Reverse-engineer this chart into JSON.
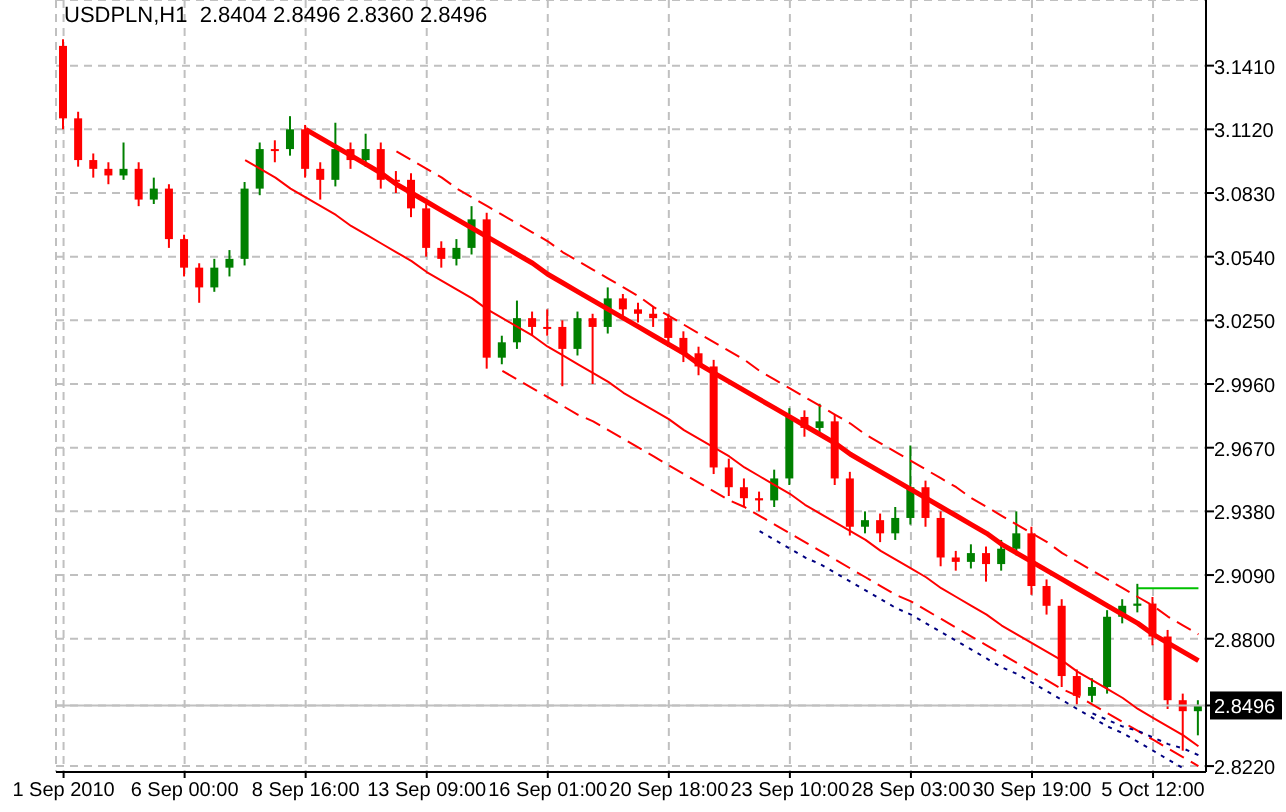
{
  "chart_data": {
    "type": "candlestick",
    "title": "USDPLN,H1  2.8404 2.8496 2.8360 2.8496",
    "categories": [
      "1 Sep 2010",
      null,
      null,
      null,
      null,
      null,
      null,
      null,
      "6 Sep 00:00",
      null,
      null,
      null,
      null,
      null,
      null,
      null,
      "8 Sep 16:00",
      null,
      null,
      null,
      null,
      null,
      null,
      null,
      "13 Sep 09:00",
      null,
      null,
      null,
      null,
      null,
      null,
      null,
      "16 Sep 01:00",
      null,
      null,
      null,
      null,
      null,
      null,
      null,
      "20 Sep 18:00",
      null,
      null,
      null,
      null,
      null,
      null,
      null,
      "23 Sep 10:00",
      null,
      null,
      null,
      null,
      null,
      null,
      null,
      "28 Sep 03:00",
      null,
      null,
      null,
      null,
      null,
      null,
      null,
      "30 Sep 19:00",
      null,
      null,
      null,
      null,
      null,
      null,
      null,
      "5 Oct 12:00",
      null,
      null,
      null
    ],
    "ylim": [
      2.8193,
      3.1709
    ],
    "yticks": [
      {
        "value": 3.141,
        "label": "3.1410"
      },
      {
        "value": 3.112,
        "label": "3.1120"
      },
      {
        "value": 3.083,
        "label": "3.0830"
      },
      {
        "value": 3.054,
        "label": "3.0540"
      },
      {
        "value": 3.025,
        "label": "3.0250"
      },
      {
        "value": 2.996,
        "label": "2.9960"
      },
      {
        "value": 2.967,
        "label": "2.9670"
      },
      {
        "value": 2.938,
        "label": "2.9380"
      },
      {
        "value": 2.909,
        "label": "2.9090"
      },
      {
        "value": 2.88,
        "label": "2.8800"
      },
      {
        "value": 2.8496,
        "label": "2.8496"
      },
      {
        "value": 2.822,
        "label": "2.8220"
      }
    ],
    "grid": true,
    "legend": false,
    "ref_lines": [
      {
        "axis": "y",
        "value": 2.8496,
        "color": "#c0c0c0",
        "line_style": "solid"
      }
    ],
    "series": [
      {
        "ohlc": [
          [
            3.15,
            3.153,
            3.112,
            3.117
          ],
          [
            3.117,
            3.12,
            3.095,
            3.098
          ],
          [
            3.098,
            3.101,
            3.09,
            3.094
          ],
          [
            3.094,
            3.097,
            3.087,
            3.091
          ],
          [
            3.091,
            3.106,
            3.089,
            3.094
          ],
          [
            3.094,
            3.097,
            3.077,
            3.08
          ],
          [
            3.08,
            3.09,
            3.078,
            3.085
          ],
          [
            3.085,
            3.087,
            3.058,
            3.062
          ],
          [
            3.062,
            3.064,
            3.045,
            3.049
          ],
          [
            3.049,
            3.051,
            3.033,
            3.04
          ],
          [
            3.04,
            3.053,
            3.038,
            3.049
          ],
          [
            3.049,
            3.057,
            3.045,
            3.053
          ],
          [
            3.053,
            3.088,
            3.05,
            3.085
          ],
          [
            3.085,
            3.106,
            3.082,
            3.103
          ],
          [
            3.103,
            3.107,
            3.097,
            3.103
          ],
          [
            3.103,
            3.118,
            3.1,
            3.112
          ],
          [
            3.112,
            3.114,
            3.09,
            3.094
          ],
          [
            3.094,
            3.097,
            3.08,
            3.089
          ],
          [
            3.089,
            3.115,
            3.086,
            3.103
          ],
          [
            3.103,
            3.106,
            3.094,
            3.098
          ],
          [
            3.098,
            3.11,
            3.095,
            3.103
          ],
          [
            3.103,
            3.106,
            3.085,
            3.089
          ],
          [
            3.089,
            3.093,
            3.083,
            3.089
          ],
          [
            3.089,
            3.092,
            3.072,
            3.076
          ],
          [
            3.076,
            3.078,
            3.054,
            3.058
          ],
          [
            3.058,
            3.061,
            3.049,
            3.053
          ],
          [
            3.053,
            3.062,
            3.05,
            3.058
          ],
          [
            3.058,
            3.077,
            3.055,
            3.071
          ],
          [
            3.071,
            3.074,
            3.003,
            3.008
          ],
          [
            3.008,
            3.018,
            3.005,
            3.015
          ],
          [
            3.015,
            3.034,
            3.012,
            3.026
          ],
          [
            3.026,
            3.029,
            3.018,
            3.022
          ],
          [
            3.022,
            3.03,
            3.018,
            3.022
          ],
          [
            3.022,
            3.025,
            2.995,
            3.012
          ],
          [
            3.012,
            3.029,
            3.009,
            3.026
          ],
          [
            3.026,
            3.028,
            2.996,
            3.022
          ],
          [
            3.022,
            3.04,
            3.019,
            3.035
          ],
          [
            3.035,
            3.037,
            3.027,
            3.03
          ],
          [
            3.03,
            3.033,
            3.024,
            3.028
          ],
          [
            3.028,
            3.031,
            3.022,
            3.026
          ],
          [
            3.026,
            3.028,
            3.013,
            3.017
          ],
          [
            3.017,
            3.02,
            3.006,
            3.01
          ],
          [
            3.01,
            3.013,
            3.0,
            3.004
          ],
          [
            3.004,
            3.007,
            2.955,
            2.958
          ],
          [
            2.958,
            2.962,
            2.945,
            2.949
          ],
          [
            2.949,
            2.953,
            2.94,
            2.944
          ],
          [
            2.944,
            2.947,
            2.938,
            2.943
          ],
          [
            2.943,
            2.957,
            2.94,
            2.953
          ],
          [
            2.953,
            2.985,
            2.95,
            2.981
          ],
          [
            2.981,
            2.984,
            2.972,
            2.976
          ],
          [
            2.976,
            2.987,
            2.973,
            2.979
          ],
          [
            2.979,
            2.982,
            2.95,
            2.953
          ],
          [
            2.953,
            2.956,
            2.927,
            2.931
          ],
          [
            2.931,
            2.938,
            2.928,
            2.934
          ],
          [
            2.934,
            2.937,
            2.924,
            2.928
          ],
          [
            2.928,
            2.94,
            2.925,
            2.935
          ],
          [
            2.935,
            2.968,
            2.932,
            2.949
          ],
          [
            2.949,
            2.952,
            2.931,
            2.935
          ],
          [
            2.935,
            2.938,
            2.913,
            2.917
          ],
          [
            2.917,
            2.92,
            2.911,
            2.915
          ],
          [
            2.915,
            2.923,
            2.912,
            2.919
          ],
          [
            2.919,
            2.922,
            2.906,
            2.914
          ],
          [
            2.914,
            2.925,
            2.911,
            2.921
          ],
          [
            2.921,
            2.938,
            2.918,
            2.928
          ],
          [
            2.928,
            2.931,
            2.9,
            2.904
          ],
          [
            2.904,
            2.907,
            2.891,
            2.895
          ],
          [
            2.895,
            2.898,
            2.858,
            2.863
          ],
          [
            2.863,
            2.866,
            2.85,
            2.854
          ],
          [
            2.854,
            2.862,
            2.851,
            2.858
          ],
          [
            2.858,
            2.893,
            2.855,
            2.89
          ],
          [
            2.89,
            2.898,
            2.887,
            2.895
          ],
          [
            2.895,
            2.905,
            2.892,
            2.896
          ],
          [
            2.896,
            2.899,
            2.877,
            2.881
          ],
          [
            2.881,
            2.884,
            2.848,
            2.852
          ],
          [
            2.852,
            2.855,
            2.829,
            2.847
          ],
          [
            2.847,
            2.852,
            2.836,
            2.8496
          ]
        ],
        "colors": [
          "#ff0000",
          "#ff0000",
          "#ff0000",
          "#ff0000",
          "#008000",
          "#ff0000",
          "#008000",
          "#ff0000",
          "#ff0000",
          "#ff0000",
          "#008000",
          "#008000",
          "#008000",
          "#008000",
          "#ff0000",
          "#008000",
          "#ff0000",
          "#ff0000",
          "#008000",
          "#ff0000",
          "#008000",
          "#ff0000",
          "#ff0000",
          "#ff0000",
          "#ff0000",
          "#ff0000",
          "#008000",
          "#008000",
          "#ff0000",
          "#008000",
          "#008000",
          "#ff0000",
          "#ff0000",
          "#ff0000",
          "#008000",
          "#ff0000",
          "#008000",
          "#ff0000",
          "#ff0000",
          "#ff0000",
          "#ff0000",
          "#ff0000",
          "#ff0000",
          "#ff0000",
          "#ff0000",
          "#ff0000",
          "#ff0000",
          "#008000",
          "#008000",
          "#ff0000",
          "#008000",
          "#ff0000",
          "#ff0000",
          "#008000",
          "#ff0000",
          "#008000",
          "#008000",
          "#ff0000",
          "#ff0000",
          "#ff0000",
          "#008000",
          "#ff0000",
          "#008000",
          "#008000",
          "#ff0000",
          "#ff0000",
          "#ff0000",
          "#ff0000",
          "#008000",
          "#008000",
          "#008000",
          "#008000",
          "#ff0000",
          "#ff0000",
          "#ff0000",
          "#008000"
        ]
      },
      {
        "type": "line",
        "color": "#ff0000",
        "line_style": "solid",
        "values": [
          null,
          null,
          null,
          null,
          null,
          null,
          null,
          null,
          null,
          null,
          null,
          null,
          null,
          null,
          null,
          null,
          3.112,
          3.108,
          3.104,
          3.1,
          3.096,
          3.092,
          3.087,
          3.083,
          3.079,
          3.075,
          3.071,
          3.067,
          3.063,
          3.059,
          3.055,
          3.051,
          3.046,
          3.042,
          3.038,
          3.034,
          3.03,
          3.026,
          3.022,
          3.018,
          3.014,
          3.01,
          3.005,
          3.001,
          2.997,
          2.993,
          2.989,
          2.985,
          2.981,
          2.977,
          2.973,
          2.969,
          2.964,
          2.96,
          2.956,
          2.952,
          2.948,
          2.944,
          2.94,
          2.936,
          2.932,
          2.928,
          2.923,
          2.919,
          2.915,
          2.911,
          2.907,
          2.903,
          2.899,
          2.895,
          2.891,
          2.887,
          2.882,
          2.878,
          2.874,
          2.87
        ]
      },
      {
        "type": "line",
        "color": "#ff0000",
        "line_style": "solid",
        "values": [
          null,
          null,
          null,
          null,
          null,
          null,
          null,
          null,
          null,
          null,
          null,
          null,
          3.098,
          3.094,
          3.09,
          3.085,
          3.081,
          3.077,
          3.073,
          3.068,
          3.064,
          3.06,
          3.056,
          3.052,
          3.047,
          3.043,
          3.039,
          3.035,
          3.03,
          3.026,
          3.022,
          3.018,
          3.013,
          3.009,
          3.005,
          3.001,
          2.997,
          2.992,
          2.988,
          2.984,
          2.98,
          2.975,
          2.971,
          2.967,
          2.963,
          2.958,
          2.954,
          2.95,
          2.946,
          2.941,
          2.937,
          2.933,
          2.929,
          2.925,
          2.92,
          2.916,
          2.912,
          2.908,
          2.903,
          2.899,
          2.895,
          2.891,
          2.886,
          2.882,
          2.878,
          2.874,
          2.87,
          2.865,
          2.861,
          2.857,
          2.853,
          2.848,
          2.844,
          2.84,
          2.836,
          2.831
        ]
      },
      {
        "type": "line",
        "color": "#ff0000",
        "line_style": "dashed",
        "values": [
          null,
          null,
          null,
          null,
          null,
          null,
          null,
          null,
          null,
          null,
          null,
          null,
          null,
          null,
          null,
          null,
          null,
          null,
          null,
          null,
          null,
          null,
          3.102,
          3.098,
          3.094,
          3.09,
          3.085,
          3.081,
          3.077,
          3.073,
          3.069,
          3.065,
          3.061,
          3.056,
          3.052,
          3.048,
          3.044,
          3.04,
          3.036,
          3.031,
          3.027,
          3.023,
          3.019,
          3.015,
          3.011,
          3.007,
          3.002,
          2.998,
          2.994,
          2.99,
          2.986,
          2.982,
          2.978,
          2.973,
          2.969,
          2.965,
          2.961,
          2.957,
          2.953,
          2.949,
          2.944,
          2.94,
          2.936,
          2.932,
          2.928,
          2.924,
          2.919,
          2.915,
          2.911,
          2.907,
          2.903,
          2.899,
          2.895,
          2.89,
          2.886,
          2.882
        ]
      },
      {
        "type": "line",
        "color": "#ff0000",
        "line_style": "dashed",
        "values": [
          null,
          null,
          null,
          null,
          null,
          null,
          null,
          null,
          null,
          null,
          null,
          null,
          null,
          null,
          null,
          null,
          null,
          null,
          null,
          null,
          null,
          null,
          null,
          null,
          null,
          null,
          null,
          null,
          null,
          3.002,
          2.998,
          2.994,
          2.99,
          2.986,
          2.982,
          2.979,
          2.975,
          2.971,
          2.967,
          2.963,
          2.959,
          2.955,
          2.951,
          2.947,
          2.943,
          2.94,
          2.936,
          2.932,
          2.928,
          2.924,
          2.92,
          2.916,
          2.912,
          2.908,
          2.904,
          2.9,
          2.897,
          2.893,
          2.889,
          2.885,
          2.881,
          2.877,
          2.873,
          2.869,
          2.865,
          2.861,
          2.857,
          2.854,
          2.85,
          2.846,
          2.842,
          2.838,
          2.834,
          2.83,
          2.826,
          2.822
        ]
      },
      {
        "type": "line",
        "color": "#000080",
        "line_style": "dotted",
        "values": [
          null,
          null,
          null,
          null,
          null,
          null,
          null,
          null,
          null,
          null,
          null,
          null,
          null,
          null,
          null,
          null,
          null,
          null,
          null,
          null,
          null,
          null,
          null,
          null,
          null,
          null,
          null,
          null,
          null,
          null,
          null,
          null,
          null,
          null,
          null,
          null,
          null,
          null,
          null,
          null,
          null,
          null,
          null,
          null,
          null,
          null,
          2.929,
          2.925,
          2.921,
          2.917,
          2.914,
          2.91,
          2.906,
          2.902,
          2.898,
          2.894,
          2.891,
          2.887,
          2.883,
          2.879,
          2.875,
          2.871,
          2.867,
          2.864,
          2.86,
          2.856,
          2.852,
          2.848,
          2.844,
          2.84,
          2.837,
          2.833,
          2.829,
          2.825,
          2.821,
          null
        ]
      },
      {
        "type": "line",
        "color": "#000080",
        "line_style": "dotted",
        "values": [
          null,
          null,
          null,
          null,
          null,
          null,
          null,
          null,
          null,
          null,
          null,
          null,
          null,
          null,
          null,
          null,
          null,
          null,
          null,
          null,
          null,
          null,
          null,
          null,
          null,
          null,
          null,
          null,
          null,
          null,
          null,
          null,
          null,
          null,
          null,
          null,
          null,
          null,
          null,
          null,
          null,
          null,
          null,
          null,
          null,
          null,
          null,
          null,
          null,
          null,
          null,
          null,
          null,
          null,
          null,
          null,
          null,
          null,
          null,
          null,
          null,
          null,
          null,
          null,
          null,
          null,
          null,
          null,
          2.846,
          2.843,
          2.84,
          2.838,
          2.835,
          2.832,
          2.83,
          2.827
        ]
      },
      {
        "type": "line",
        "color": "#00c000",
        "line_style": "solid",
        "values": [
          null,
          null,
          null,
          null,
          null,
          null,
          null,
          null,
          null,
          null,
          null,
          null,
          null,
          null,
          null,
          null,
          null,
          null,
          null,
          null,
          null,
          null,
          null,
          null,
          null,
          null,
          null,
          null,
          null,
          null,
          null,
          null,
          null,
          null,
          null,
          null,
          null,
          null,
          null,
          null,
          null,
          null,
          null,
          null,
          null,
          null,
          null,
          null,
          null,
          null,
          null,
          null,
          null,
          null,
          null,
          null,
          null,
          null,
          null,
          null,
          null,
          null,
          null,
          null,
          null,
          null,
          null,
          null,
          null,
          null,
          null,
          2.903,
          2.903,
          2.903,
          2.903,
          2.903
        ]
      }
    ]
  }
}
